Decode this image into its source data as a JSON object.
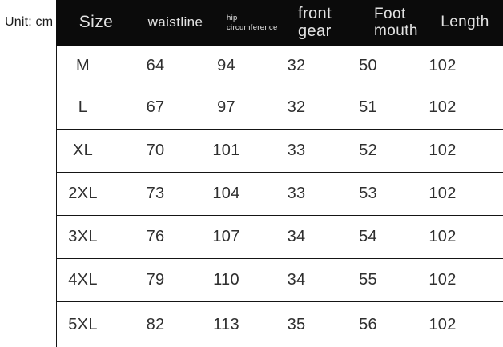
{
  "chart_data": {
    "type": "table",
    "annotation": "Unit: cm",
    "columns": [
      "Size",
      "waistline",
      "hip circumference",
      "front gear",
      "Foot mouth",
      "Length"
    ],
    "rows": [
      [
        "M",
        "64",
        "94",
        "32",
        "50",
        "102"
      ],
      [
        "L",
        "67",
        "97",
        "32",
        "51",
        "102"
      ],
      [
        "XL",
        "70",
        "101",
        "33",
        "52",
        "102"
      ],
      [
        "2XL",
        "73",
        "104",
        "33",
        "53",
        "102"
      ],
      [
        "3XL",
        "76",
        "107",
        "34",
        "54",
        "102"
      ],
      [
        "4XL",
        "79",
        "110",
        "34",
        "55",
        "102"
      ],
      [
        "5XL",
        "82",
        "113",
        "35",
        "56",
        "102"
      ]
    ]
  },
  "header": {
    "size": "Size",
    "waistline": "waistline",
    "hip": [
      "hip",
      "circumference"
    ],
    "front": [
      "front",
      "gear"
    ],
    "foot": [
      "Foot",
      "mouth"
    ],
    "length": "Length"
  },
  "colors": {
    "header_bg": "#0b0b0b",
    "header_text": "#e3e3e3",
    "body_text": "#2f2f2f",
    "row_border": "#151515",
    "background": "#ffffff"
  }
}
